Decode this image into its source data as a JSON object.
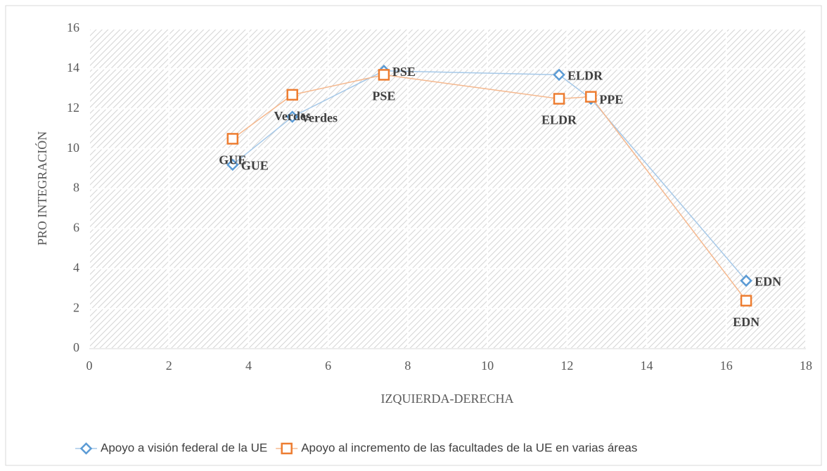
{
  "chart_data": {
    "type": "line",
    "xlabel": "IZQUIERDA-DERECHA",
    "ylabel": "PRO INTEGRACIÓN",
    "xlim": [
      0,
      18
    ],
    "xticks": [
      0,
      2,
      4,
      6,
      8,
      10,
      12,
      14,
      16,
      18
    ],
    "ylim": [
      0,
      16
    ],
    "yticks": [
      0,
      2,
      4,
      6,
      8,
      10,
      12,
      14,
      16
    ],
    "grid": true,
    "legend": "bottom",
    "series": [
      {
        "name": "Apoyo a visión federal de la UE",
        "color": "#5b9bd5",
        "marker": "diamond",
        "x": [
          3.6,
          5.1,
          7.4,
          11.8,
          12.6,
          16.5
        ],
        "values": [
          9.2,
          11.6,
          13.9,
          13.7,
          12.5,
          3.4
        ],
        "labels": [
          "GUE",
          "Verdes",
          "PSE",
          "ELDR",
          "PPE",
          "EDN"
        ]
      },
      {
        "name": "Apoyo al incremento de las facultades de la UE en varias áreas",
        "color": "#ed7d31",
        "marker": "square",
        "x": [
          3.6,
          5.1,
          7.4,
          11.8,
          12.6,
          16.5
        ],
        "values": [
          10.5,
          12.7,
          13.7,
          12.5,
          12.6,
          2.4
        ],
        "labels": [
          "GUE",
          "Verdes",
          "PSE",
          "ELDR",
          null,
          "EDN"
        ]
      }
    ]
  }
}
